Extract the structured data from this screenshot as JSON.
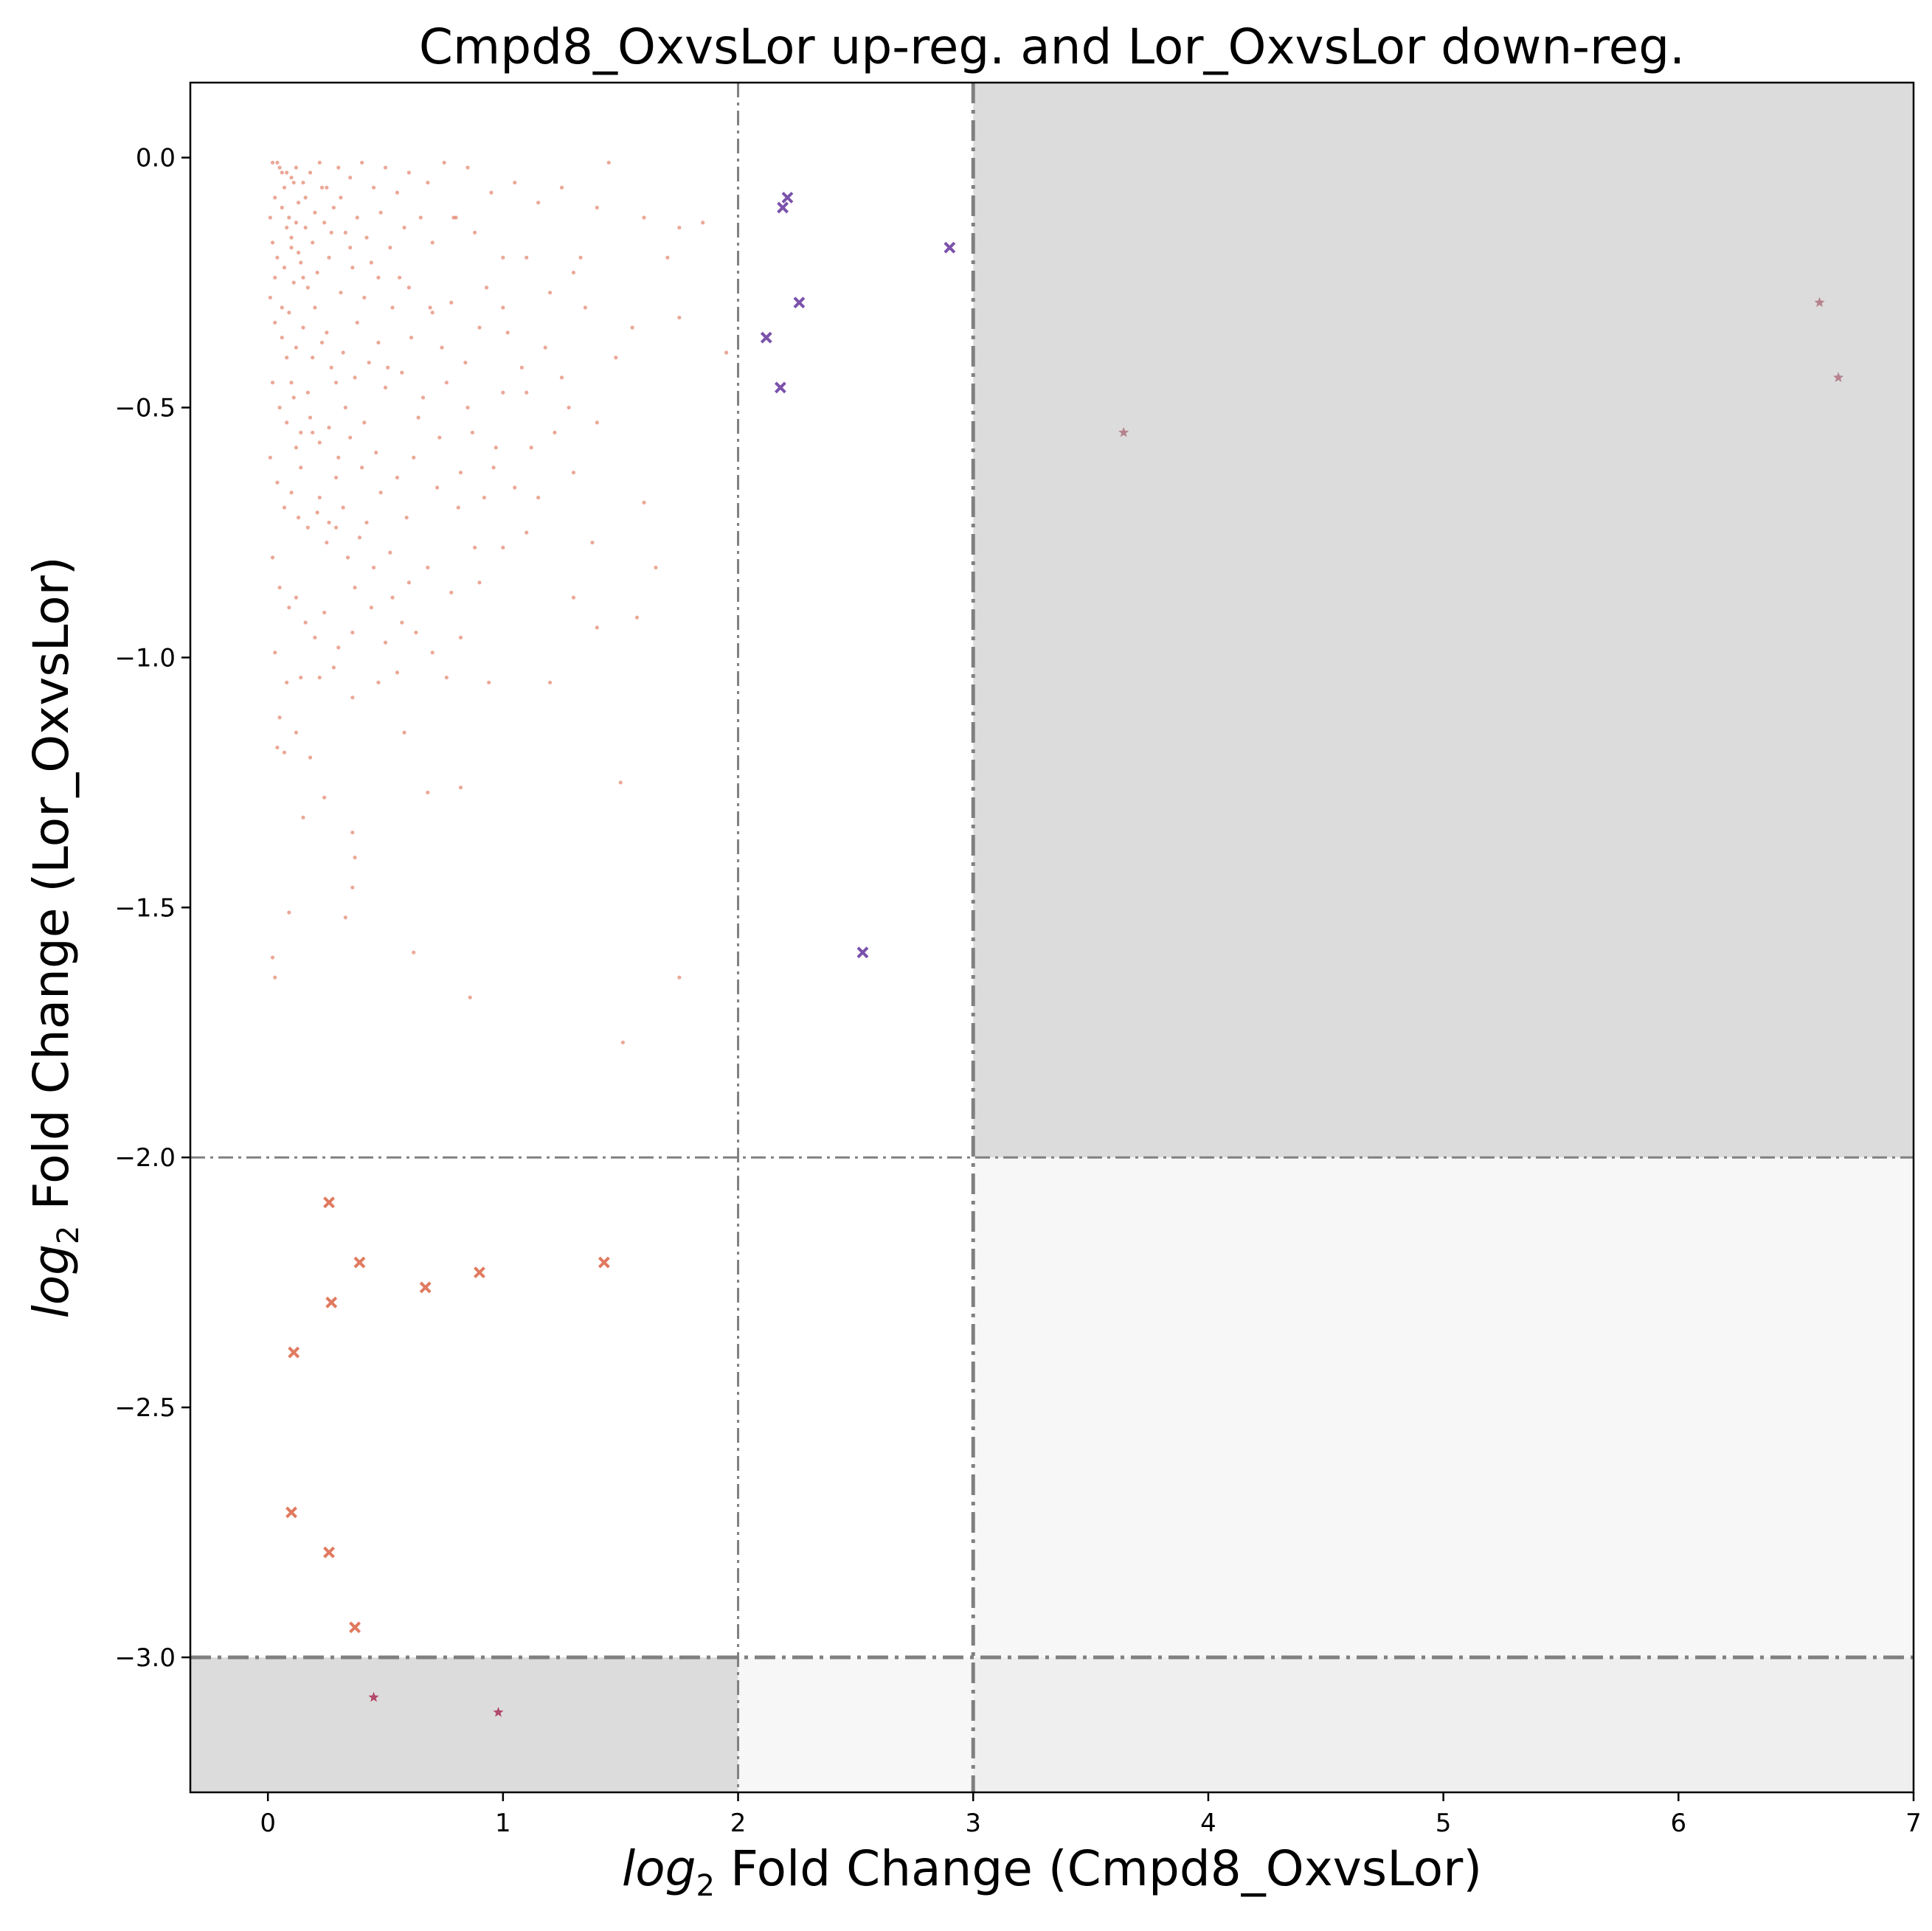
{
  "chart_data": {
    "type": "scatter",
    "title": "Cmpd8_OxvsLor up-reg. and Lor_OxvsLor down-reg.",
    "xlabel_prefix": "log",
    "xlabel_sub": "2",
    "xlabel_rest": " Fold Change (Cmpd8_OxvsLor)",
    "ylabel_prefix": "log",
    "ylabel_sub": "2",
    "ylabel_rest": " Fold Change (Lor_OxvsLor)",
    "xlim": [
      -0.33,
      7.0
    ],
    "ylim": [
      -3.27,
      0.15
    ],
    "x_ticks": [
      0,
      1,
      2,
      3,
      4,
      5,
      6,
      7
    ],
    "y_ticks": [
      0.0,
      -0.5,
      -1.0,
      -1.5,
      -2.0,
      -2.5,
      -3.0
    ],
    "x_tick_labels": [
      "0",
      "1",
      "2",
      "3",
      "4",
      "5",
      "6",
      "7"
    ],
    "y_tick_labels": [
      "0.0",
      "−0.5",
      "−1.0",
      "−1.5",
      "−2.0",
      "−2.5",
      "−3.0"
    ],
    "grid": false,
    "thresholds": {
      "x_lines": [
        {
          "value": 2,
          "style": "thin"
        },
        {
          "value": 3,
          "style": "thick"
        }
      ],
      "y_lines": [
        {
          "value": -2,
          "style": "thin"
        },
        {
          "value": -3,
          "style": "thick"
        }
      ]
    },
    "shaded_regions": [
      {
        "x": [
          3,
          7.0
        ],
        "y": [
          -2,
          0.15
        ],
        "color": "#dcdcdc"
      },
      {
        "x": [
          -0.33,
          2
        ],
        "y": [
          -3.27,
          -3
        ],
        "color": "#dcdcdc"
      },
      {
        "x": [
          3,
          7.0
        ],
        "y": [
          -3,
          -2
        ],
        "color": "#f7f7f7"
      },
      {
        "x": [
          2,
          3
        ],
        "y": [
          -3.27,
          -3
        ],
        "color": "#f7f7f7"
      },
      {
        "x": [
          3,
          7.0
        ],
        "y": [
          -3.27,
          -3
        ],
        "color": "#efefef"
      }
    ],
    "series": [
      {
        "marker": "dot",
        "color": "#e07a5f",
        "points": [
          [
            0.02,
            -0.01
          ],
          [
            0.05,
            -0.02
          ],
          [
            0.08,
            -0.03
          ],
          [
            0.1,
            -0.04
          ],
          [
            0.12,
            -0.02
          ],
          [
            0.15,
            -0.05
          ],
          [
            0.18,
            -0.03
          ],
          [
            0.22,
            -0.01
          ],
          [
            0.25,
            -0.06
          ],
          [
            0.3,
            -0.02
          ],
          [
            0.35,
            -0.04
          ],
          [
            0.4,
            -0.01
          ],
          [
            0.45,
            -0.06
          ],
          [
            0.5,
            -0.02
          ],
          [
            0.55,
            -0.07
          ],
          [
            0.6,
            -0.03
          ],
          [
            0.68,
            -0.05
          ],
          [
            0.75,
            -0.01
          ],
          [
            0.85,
            -0.02
          ],
          [
            0.95,
            -0.07
          ],
          [
            1.05,
            -0.05
          ],
          [
            1.15,
            -0.09
          ],
          [
            1.25,
            -0.06
          ],
          [
            1.4,
            -0.1
          ],
          [
            1.45,
            -0.01
          ],
          [
            1.6,
            -0.12
          ],
          [
            1.75,
            -0.14
          ],
          [
            1.85,
            -0.13
          ],
          [
            0.03,
            -0.08
          ],
          [
            0.06,
            -0.1
          ],
          [
            0.09,
            -0.12
          ],
          [
            0.13,
            -0.09
          ],
          [
            0.16,
            -0.14
          ],
          [
            0.2,
            -0.11
          ],
          [
            0.24,
            -0.13
          ],
          [
            0.28,
            -0.1
          ],
          [
            0.33,
            -0.15
          ],
          [
            0.38,
            -0.12
          ],
          [
            0.42,
            -0.16
          ],
          [
            0.48,
            -0.11
          ],
          [
            0.52,
            -0.18
          ],
          [
            0.58,
            -0.14
          ],
          [
            0.65,
            -0.12
          ],
          [
            0.7,
            -0.17
          ],
          [
            0.8,
            -0.12
          ],
          [
            0.88,
            -0.15
          ],
          [
            1.0,
            -0.2
          ],
          [
            1.1,
            -0.2
          ],
          [
            1.3,
            -0.23
          ],
          [
            1.7,
            -0.2
          ],
          [
            0.02,
            -0.17
          ],
          [
            0.04,
            -0.2
          ],
          [
            0.07,
            -0.22
          ],
          [
            0.1,
            -0.18
          ],
          [
            0.11,
            -0.25
          ],
          [
            0.14,
            -0.21
          ],
          [
            0.17,
            -0.26
          ],
          [
            0.21,
            -0.23
          ],
          [
            0.26,
            -0.2
          ],
          [
            0.31,
            -0.27
          ],
          [
            0.36,
            -0.22
          ],
          [
            0.41,
            -0.28
          ],
          [
            0.47,
            -0.24
          ],
          [
            0.53,
            -0.3
          ],
          [
            0.6,
            -0.26
          ],
          [
            0.7,
            -0.31
          ],
          [
            0.78,
            -0.29
          ],
          [
            0.9,
            -0.34
          ],
          [
            1.0,
            -0.3
          ],
          [
            1.2,
            -0.27
          ],
          [
            1.35,
            -0.3
          ],
          [
            1.55,
            -0.34
          ],
          [
            1.75,
            -0.32
          ],
          [
            1.95,
            -0.39
          ],
          [
            0.01,
            -0.28
          ],
          [
            0.03,
            -0.33
          ],
          [
            0.06,
            -0.36
          ],
          [
            0.09,
            -0.31
          ],
          [
            0.12,
            -0.38
          ],
          [
            0.15,
            -0.34
          ],
          [
            0.19,
            -0.4
          ],
          [
            0.23,
            -0.37
          ],
          [
            0.27,
            -0.42
          ],
          [
            0.32,
            -0.39
          ],
          [
            0.37,
            -0.44
          ],
          [
            0.43,
            -0.41
          ],
          [
            0.5,
            -0.46
          ],
          [
            0.57,
            -0.43
          ],
          [
            0.66,
            -0.48
          ],
          [
            0.76,
            -0.45
          ],
          [
            0.85,
            -0.5
          ],
          [
            1.0,
            -0.47
          ],
          [
            1.1,
            -0.47
          ],
          [
            1.25,
            -0.44
          ],
          [
            1.4,
            -0.53
          ],
          [
            0.02,
            -0.45
          ],
          [
            0.05,
            -0.5
          ],
          [
            0.08,
            -0.53
          ],
          [
            0.11,
            -0.48
          ],
          [
            0.14,
            -0.55
          ],
          [
            0.18,
            -0.52
          ],
          [
            0.22,
            -0.57
          ],
          [
            0.26,
            -0.54
          ],
          [
            0.3,
            -0.6
          ],
          [
            0.35,
            -0.56
          ],
          [
            0.4,
            -0.62
          ],
          [
            0.46,
            -0.59
          ],
          [
            0.55,
            -0.64
          ],
          [
            0.62,
            -0.6
          ],
          [
            0.72,
            -0.66
          ],
          [
            0.82,
            -0.63
          ],
          [
            0.92,
            -0.68
          ],
          [
            1.05,
            -0.66
          ],
          [
            1.15,
            -0.68
          ],
          [
            1.3,
            -0.63
          ],
          [
            1.6,
            -0.69
          ],
          [
            0.01,
            -0.6
          ],
          [
            0.04,
            -0.65
          ],
          [
            0.07,
            -0.7
          ],
          [
            0.1,
            -0.67
          ],
          [
            0.13,
            -0.72
          ],
          [
            0.17,
            -0.74
          ],
          [
            0.21,
            -0.71
          ],
          [
            0.25,
            -0.77
          ],
          [
            0.29,
            -0.74
          ],
          [
            0.34,
            -0.8
          ],
          [
            0.39,
            -0.76
          ],
          [
            0.45,
            -0.82
          ],
          [
            0.52,
            -0.79
          ],
          [
            0.6,
            -0.85
          ],
          [
            0.68,
            -0.82
          ],
          [
            0.78,
            -0.87
          ],
          [
            0.9,
            -0.85
          ],
          [
            1.0,
            -0.78
          ],
          [
            1.1,
            -0.75
          ],
          [
            1.38,
            -0.77
          ],
          [
            1.65,
            -0.82
          ],
          [
            0.02,
            -0.8
          ],
          [
            0.05,
            -0.86
          ],
          [
            0.09,
            -0.9
          ],
          [
            0.12,
            -0.88
          ],
          [
            0.16,
            -0.93
          ],
          [
            0.2,
            -0.96
          ],
          [
            0.24,
            -0.91
          ],
          [
            0.3,
            -0.98
          ],
          [
            0.36,
            -0.95
          ],
          [
            0.44,
            -0.9
          ],
          [
            0.5,
            -0.97
          ],
          [
            0.57,
            -0.93
          ],
          [
            0.7,
            -0.99
          ],
          [
            0.82,
            -0.96
          ],
          [
            1.3,
            -0.88
          ],
          [
            1.4,
            -0.94
          ],
          [
            1.57,
            -0.92
          ],
          [
            0.03,
            -0.99
          ],
          [
            0.08,
            -1.05
          ],
          [
            0.14,
            -1.04
          ],
          [
            0.22,
            -1.04
          ],
          [
            0.28,
            -1.02
          ],
          [
            0.36,
            -1.08
          ],
          [
            0.47,
            -1.05
          ],
          [
            0.55,
            -1.03
          ],
          [
            0.76,
            -1.04
          ],
          [
            0.94,
            -1.05
          ],
          [
            1.2,
            -1.05
          ],
          [
            0.05,
            -1.12
          ],
          [
            0.12,
            -1.15
          ],
          [
            0.18,
            -1.2
          ],
          [
            0.58,
            -1.15
          ],
          [
            0.04,
            -1.18
          ],
          [
            0.07,
            -1.19
          ],
          [
            0.15,
            -1.32
          ],
          [
            0.24,
            -1.28
          ],
          [
            0.36,
            -1.35
          ],
          [
            0.37,
            -1.4
          ],
          [
            0.36,
            -1.46
          ],
          [
            0.33,
            -1.52
          ],
          [
            0.09,
            -1.51
          ],
          [
            0.68,
            -1.27
          ],
          [
            0.82,
            -1.26
          ],
          [
            1.5,
            -1.25
          ],
          [
            0.02,
            -1.6
          ],
          [
            0.03,
            -1.64
          ],
          [
            0.62,
            -1.59
          ],
          [
            0.86,
            -1.68
          ],
          [
            1.75,
            -1.64
          ],
          [
            1.51,
            -1.77
          ],
          [
            0.04,
            -0.01
          ],
          [
            0.06,
            -0.03
          ],
          [
            0.07,
            -0.06
          ],
          [
            0.08,
            -0.14
          ],
          [
            0.1,
            -0.16
          ],
          [
            0.11,
            -0.05
          ],
          [
            0.12,
            -0.13
          ],
          [
            0.13,
            -0.19
          ],
          [
            0.15,
            -0.24
          ],
          [
            0.16,
            -0.08
          ],
          [
            0.19,
            -0.17
          ],
          [
            0.2,
            -0.3
          ],
          [
            0.23,
            -0.06
          ],
          [
            0.25,
            -0.35
          ],
          [
            0.27,
            -0.15
          ],
          [
            0.29,
            -0.45
          ],
          [
            0.31,
            -0.08
          ],
          [
            0.33,
            -0.5
          ],
          [
            0.35,
            -0.18
          ],
          [
            0.38,
            -0.33
          ],
          [
            0.41,
            -0.53
          ],
          [
            0.44,
            -0.21
          ],
          [
            0.47,
            -0.37
          ],
          [
            0.51,
            -0.42
          ],
          [
            0.56,
            -0.24
          ],
          [
            0.61,
            -0.36
          ],
          [
            0.64,
            -0.52
          ],
          [
            0.69,
            -0.3
          ],
          [
            0.74,
            -0.38
          ],
          [
            0.79,
            -0.12
          ],
          [
            0.84,
            -0.41
          ],
          [
            0.87,
            -0.55
          ],
          [
            0.93,
            -0.26
          ],
          [
            0.97,
            -0.58
          ],
          [
            1.02,
            -0.35
          ],
          [
            1.08,
            -0.42
          ],
          [
            1.12,
            -0.58
          ],
          [
            1.18,
            -0.38
          ],
          [
            1.22,
            -0.55
          ],
          [
            1.28,
            -0.5
          ],
          [
            1.33,
            -0.2
          ],
          [
            1.48,
            -0.4
          ],
          [
            0.01,
            -0.12
          ],
          [
            0.03,
            -0.24
          ],
          [
            0.06,
            -0.3
          ],
          [
            0.08,
            -0.4
          ],
          [
            0.1,
            -0.45
          ],
          [
            0.12,
            -0.58
          ],
          [
            0.14,
            -0.62
          ],
          [
            0.17,
            -0.47
          ],
          [
            0.19,
            -0.55
          ],
          [
            0.22,
            -0.68
          ],
          [
            0.26,
            -0.73
          ],
          [
            0.29,
            -0.64
          ],
          [
            0.32,
            -0.7
          ],
          [
            0.37,
            -0.86
          ],
          [
            0.42,
            -0.73
          ],
          [
            0.48,
            -0.67
          ],
          [
            0.53,
            -0.88
          ],
          [
            0.59,
            -0.72
          ],
          [
            0.63,
            -0.95
          ],
          [
            0.73,
            -0.56
          ],
          [
            0.81,
            -0.7
          ],
          [
            0.88,
            -0.78
          ],
          [
            0.96,
            -0.62
          ]
        ]
      },
      {
        "marker": "x",
        "color": "#7b52ab",
        "points": [
          [
            2.21,
            -0.08
          ],
          [
            2.19,
            -0.1
          ],
          [
            2.9,
            -0.18
          ],
          [
            2.26,
            -0.29
          ],
          [
            2.12,
            -0.36
          ],
          [
            2.18,
            -0.46
          ],
          [
            2.53,
            -1.59
          ]
        ]
      },
      {
        "marker": "x",
        "color": "#e07a5f",
        "points": [
          [
            0.26,
            -2.09
          ],
          [
            0.39,
            -2.21
          ],
          [
            1.43,
            -2.21
          ],
          [
            0.9,
            -2.23
          ],
          [
            0.67,
            -2.26
          ],
          [
            0.27,
            -2.29
          ],
          [
            0.11,
            -2.39
          ],
          [
            0.1,
            -2.71
          ],
          [
            0.26,
            -2.79
          ],
          [
            0.37,
            -2.94
          ]
        ]
      },
      {
        "marker": "star",
        "color": "#b5838d",
        "points": [
          [
            3.64,
            -0.55
          ],
          [
            6.6,
            -0.29
          ],
          [
            6.68,
            -0.44
          ]
        ]
      },
      {
        "marker": "star",
        "color": "#b24a6a",
        "points": [
          [
            0.45,
            -3.08
          ],
          [
            0.98,
            -3.11
          ]
        ]
      }
    ]
  }
}
